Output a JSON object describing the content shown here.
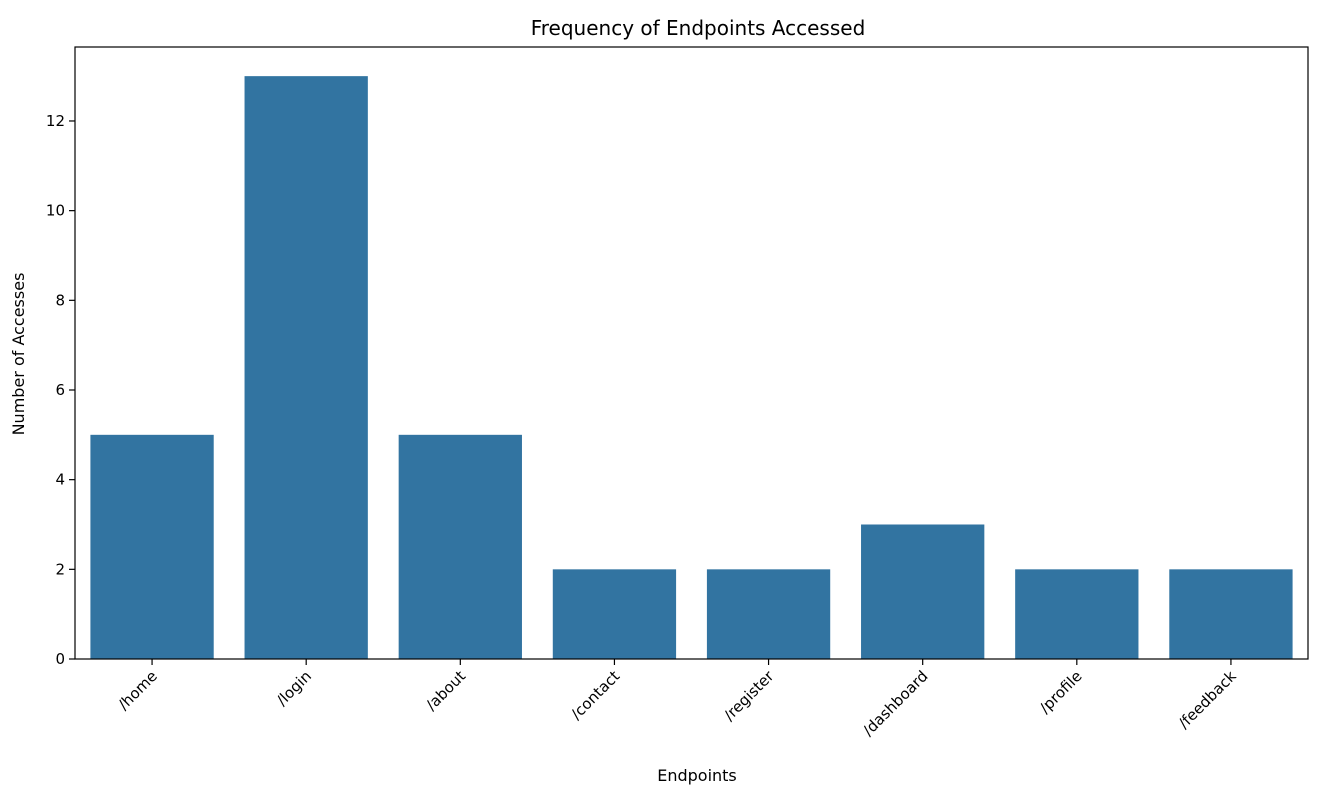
{
  "chart_data": {
    "type": "bar",
    "title": "Frequency of Endpoints Accessed",
    "xlabel": "Endpoints",
    "ylabel": "Number of Accesses",
    "categories": [
      "/home",
      "/login",
      "/about",
      "/contact",
      "/register",
      "/dashboard",
      "/profile",
      "/feedback"
    ],
    "values": [
      5,
      13,
      5,
      2,
      2,
      3,
      2,
      2
    ],
    "yticks": [
      0,
      2,
      4,
      6,
      8,
      10,
      12
    ],
    "ylim": [
      0,
      13.65
    ],
    "grid": false,
    "legend": "none",
    "bar_color": "#3274a1"
  }
}
